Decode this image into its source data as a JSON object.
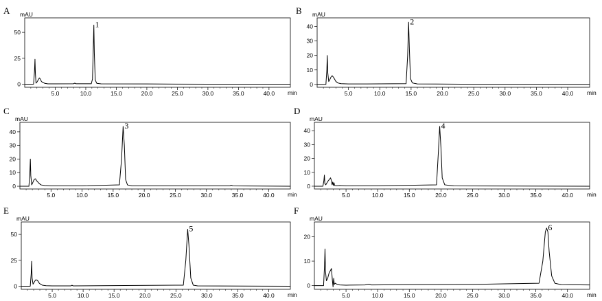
{
  "chart_data": [
    {
      "type": "line",
      "panel": "A",
      "peak_label": "1",
      "peak_x": 11.3,
      "peak_y": 57,
      "ylabel": "mAU",
      "xlabel": "min",
      "xlim": [
        0,
        43.5
      ],
      "ylim": [
        -3,
        64
      ],
      "xticks": [
        "5.0",
        "10.0",
        "15.0",
        "20.0",
        "25.0",
        "30.0",
        "35.0",
        "40.0"
      ],
      "yticks": [
        "0",
        "25",
        "50"
      ],
      "series": [
        {
          "x": [
            0,
            1.45,
            1.6,
            1.68,
            1.75,
            1.85,
            2.0,
            2.2,
            2.4,
            2.55,
            2.7,
            2.85,
            3.0,
            3.3,
            3.8,
            5,
            8,
            8.2,
            8.4,
            10.9,
            11.1,
            11.25,
            11.32,
            11.4,
            11.55,
            11.8,
            12.5,
            20,
            30,
            43.5
          ],
          "y": [
            0,
            0,
            12,
            24,
            10,
            1,
            2,
            4,
            6,
            5,
            3,
            2,
            1.5,
            0.8,
            0.3,
            0.3,
            0.4,
            1,
            0.4,
            0.4,
            5,
            40,
            57,
            30,
            4,
            0.8,
            0.3,
            0.2,
            0,
            0
          ]
        }
      ]
    },
    {
      "type": "line",
      "panel": "B",
      "peak_label": "2",
      "peak_x": 14.6,
      "peak_y": 43,
      "ylabel": "mAU",
      "xlabel": "min",
      "xlim": [
        0,
        43.5
      ],
      "ylim": [
        -2,
        46
      ],
      "xticks": [
        "5.0",
        "10.0",
        "15.0",
        "20.0",
        "25.0",
        "30.0",
        "35.0",
        "40.0"
      ],
      "yticks": [
        "0",
        "10",
        "20",
        "30",
        "40"
      ],
      "series": [
        {
          "x": [
            0,
            1.4,
            1.55,
            1.62,
            1.7,
            1.85,
            2.0,
            2.2,
            2.4,
            2.6,
            2.8,
            3.0,
            3.3,
            3.8,
            5,
            8,
            14.2,
            14.45,
            14.6,
            14.72,
            14.9,
            15.2,
            16,
            25,
            43.5
          ],
          "y": [
            0,
            0,
            10,
            20,
            8,
            2,
            3,
            5,
            6,
            5,
            3.5,
            2,
            1,
            0.5,
            0.3,
            0.3,
            0.5,
            20,
            43,
            25,
            4,
            1,
            0.3,
            0.1,
            0
          ]
        }
      ]
    },
    {
      "type": "line",
      "panel": "C",
      "peak_label": "3",
      "peak_x": 16.6,
      "peak_y": 44,
      "ylabel": "mAU",
      "xlabel": "min",
      "xlim": [
        0,
        43.5
      ],
      "ylim": [
        -2,
        47
      ],
      "xticks": [
        "5.0",
        "10.0",
        "15.0",
        "20.0",
        "25.0",
        "30.0",
        "35.0",
        "40.0"
      ],
      "yticks": [
        "0",
        "10",
        "20",
        "30",
        "40"
      ],
      "series": [
        {
          "x": [
            0,
            1.45,
            1.6,
            1.68,
            1.75,
            1.9,
            2.1,
            2.3,
            2.5,
            2.7,
            2.9,
            3.1,
            3.4,
            4,
            5,
            10,
            16.0,
            16.35,
            16.6,
            16.8,
            17.0,
            17.3,
            18,
            33.8,
            34,
            34.2,
            43.5
          ],
          "y": [
            0,
            0,
            10,
            20,
            8,
            1,
            3,
            5,
            5.5,
            4,
            3,
            2,
            1,
            0.5,
            0.3,
            0.3,
            1,
            20,
            44,
            30,
            5,
            1,
            0.3,
            0.3,
            0.8,
            0.3,
            0
          ]
        }
      ]
    },
    {
      "type": "line",
      "panel": "D",
      "peak_label": "4",
      "peak_x": 19.8,
      "peak_y": 43,
      "ylabel": "mAU",
      "xlabel": "min",
      "xlim": [
        0,
        43.5
      ],
      "ylim": [
        -2,
        46
      ],
      "xticks": [
        "5.0",
        "10.0",
        "15.0",
        "20.0",
        "25.0",
        "30.0",
        "35.0",
        "40.0"
      ],
      "yticks": [
        "0",
        "10",
        "20",
        "30",
        "40"
      ],
      "series": [
        {
          "x": [
            0,
            1.35,
            1.5,
            1.58,
            1.65,
            1.8,
            2.0,
            2.2,
            2.4,
            2.55,
            2.7,
            2.8,
            2.9,
            3.0,
            3.1,
            3.2,
            3.5,
            4,
            5,
            10,
            19.3,
            19.6,
            19.8,
            20.0,
            20.2,
            20.6,
            21.5,
            22,
            43.5
          ],
          "y": [
            0,
            0,
            4,
            8,
            2,
            1,
            2.5,
            4,
            5,
            6,
            4,
            1,
            3,
            0.5,
            2.5,
            0.5,
            0.3,
            0.5,
            0.2,
            0.3,
            1,
            25,
            43,
            28,
            6,
            1,
            0.5,
            0.2,
            0
          ]
        }
      ]
    },
    {
      "type": "line",
      "panel": "E",
      "peak_label": "5",
      "peak_x": 26.9,
      "peak_y": 55,
      "ylabel": "mAU",
      "xlabel": "min",
      "xlim": [
        0,
        43.5
      ],
      "ylim": [
        -3,
        62
      ],
      "xticks": [
        "5.0",
        "10.0",
        "15.0",
        "20.0",
        "25.0",
        "30.0",
        "35.0",
        "40.0"
      ],
      "yticks": [
        "0",
        "25",
        "50"
      ],
      "series": [
        {
          "x": [
            0,
            1.45,
            1.6,
            1.68,
            1.75,
            1.9,
            2.1,
            2.3,
            2.5,
            2.7,
            2.9,
            3.1,
            3.4,
            4,
            5,
            8,
            8.2,
            8.4,
            26.2,
            26.6,
            26.9,
            27.1,
            27.4,
            27.8,
            28.5,
            43.5
          ],
          "y": [
            0,
            0,
            12,
            24,
            8,
            2,
            4,
            6,
            6,
            5,
            3,
            2,
            1,
            0.5,
            0.3,
            0.3,
            0.9,
            0.3,
            1,
            25,
            55,
            40,
            8,
            1,
            0.3,
            0
          ]
        }
      ]
    },
    {
      "type": "line",
      "panel": "F",
      "peak_label": "6",
      "peak_x": 36.7,
      "peak_y": 23.5,
      "ylabel": "mAU",
      "xlabel": "min",
      "xlim": [
        0,
        43.5
      ],
      "ylim": [
        -1.5,
        26
      ],
      "xticks": [
        "5.0",
        "10.0",
        "15.0",
        "20.0",
        "25.0",
        "30.0",
        "35.0",
        "40.0"
      ],
      "yticks": [
        "0",
        "10",
        "20"
      ],
      "series": [
        {
          "x": [
            0,
            1.45,
            1.6,
            1.68,
            1.75,
            1.9,
            2.1,
            2.3,
            2.5,
            2.7,
            2.85,
            2.95,
            3.05,
            3.15,
            3.3,
            3.6,
            4,
            5,
            8,
            8.6,
            9,
            15,
            25,
            35.5,
            36.1,
            36.5,
            36.7,
            36.9,
            37.1,
            37.5,
            38,
            39,
            43.5
          ],
          "y": [
            0,
            0,
            8,
            15,
            6,
            2,
            3,
            5,
            6,
            7,
            2,
            -0.5,
            3,
            0.5,
            1,
            0.5,
            0.3,
            0.2,
            0.3,
            0.6,
            0.3,
            0.4,
            0.5,
            1,
            10,
            22,
            23.5,
            22,
            14,
            4,
            1,
            0.4,
            0.3
          ]
        }
      ]
    }
  ]
}
